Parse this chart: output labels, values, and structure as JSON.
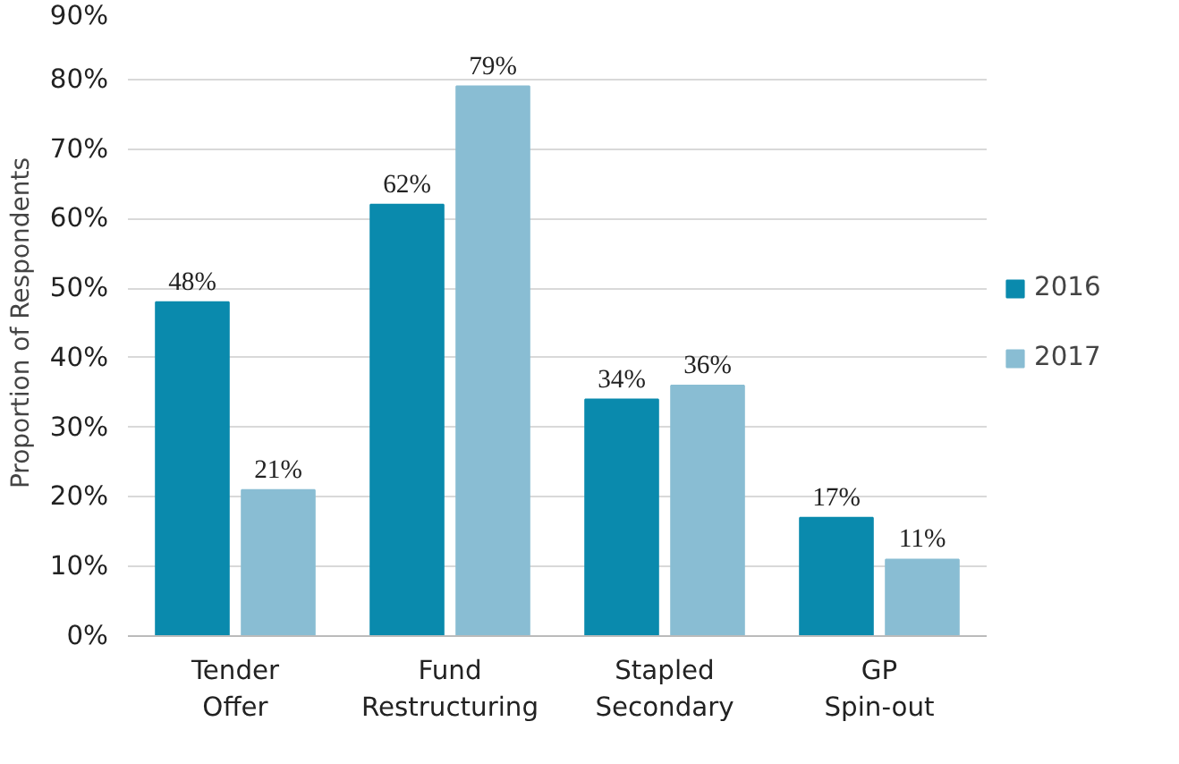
{
  "chart_data": {
    "type": "bar",
    "ylabel": "Proportion of Respondents",
    "categories": [
      "Tender\nOffer",
      "Fund\nRestructuring",
      "Stapled\nSecondary",
      "GP\nSpin-out"
    ],
    "series": [
      {
        "name": "2016",
        "color": "#0a8aad",
        "values": [
          48,
          62,
          34,
          17
        ],
        "value_labels": [
          "48%",
          "62%",
          "34%",
          "17%"
        ]
      },
      {
        "name": "2017",
        "color": "#89bdd3",
        "values": [
          21,
          79,
          36,
          11
        ],
        "value_labels": [
          "21%",
          "79%",
          "36%",
          "11%"
        ]
      }
    ],
    "ylim": [
      0,
      90
    ],
    "yticks": [
      {
        "value": 0,
        "label": "0%"
      },
      {
        "value": 10,
        "label": "10%"
      },
      {
        "value": 20,
        "label": "20%"
      },
      {
        "value": 30,
        "label": "30%"
      },
      {
        "value": 40,
        "label": "40%"
      },
      {
        "value": 50,
        "label": "50%"
      },
      {
        "value": 60,
        "label": "60%"
      },
      {
        "value": 70,
        "label": "70%"
      },
      {
        "value": 80,
        "label": "80%"
      },
      {
        "value": 90,
        "label": "90%"
      }
    ],
    "grid": "y",
    "legend": "right"
  }
}
